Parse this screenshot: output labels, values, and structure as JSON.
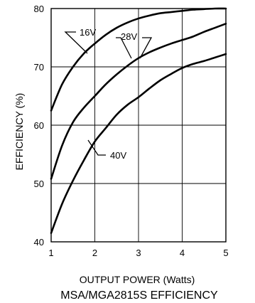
{
  "chart_data": {
    "type": "line",
    "title": "MSA/MGA2815S EFFICIENCY",
    "xlabel": "OUTPUT POWER (Watts)",
    "ylabel": "EFFICIENCY (%)",
    "xlim": [
      1,
      5
    ],
    "ylim": [
      40,
      80
    ],
    "x_ticks": [
      "1",
      "2",
      "3",
      "4",
      "5"
    ],
    "y_ticks": [
      "40",
      "50",
      "60",
      "70",
      "80"
    ],
    "grid": true,
    "series": [
      {
        "name": "16V",
        "x": [
          1,
          1.25,
          1.5,
          1.75,
          2,
          2.25,
          2.5,
          2.75,
          3,
          3.25,
          3.5,
          3.75,
          4,
          4.25,
          4.5,
          4.75,
          5
        ],
        "y": [
          62.5,
          67,
          70,
          72.3,
          74,
          75.5,
          76.7,
          77.6,
          78.3,
          78.8,
          79.2,
          79.4,
          79.6,
          79.8,
          79.9,
          80,
          80
        ]
      },
      {
        "name": "28V",
        "x": [
          1,
          1.25,
          1.5,
          1.75,
          2,
          2.25,
          2.5,
          2.75,
          3,
          3.25,
          3.5,
          3.75,
          4,
          4.25,
          4.5,
          4.75,
          5
        ],
        "y": [
          50.8,
          56.5,
          60.5,
          63,
          65,
          67,
          68.7,
          70.2,
          71.5,
          72.5,
          73.3,
          74,
          74.6,
          75.2,
          76,
          76.7,
          77.4
        ]
      },
      {
        "name": "40V",
        "x": [
          1,
          1.25,
          1.5,
          1.75,
          2,
          2.25,
          2.5,
          2.75,
          3,
          3.25,
          3.5,
          3.75,
          4,
          4.25,
          4.5,
          4.75,
          5
        ],
        "y": [
          41.5,
          46.5,
          50.5,
          54,
          57.2,
          59.5,
          61.8,
          63.5,
          64.8,
          66.3,
          67.7,
          68.8,
          69.8,
          70.5,
          71,
          71.6,
          72.2
        ]
      }
    ]
  }
}
